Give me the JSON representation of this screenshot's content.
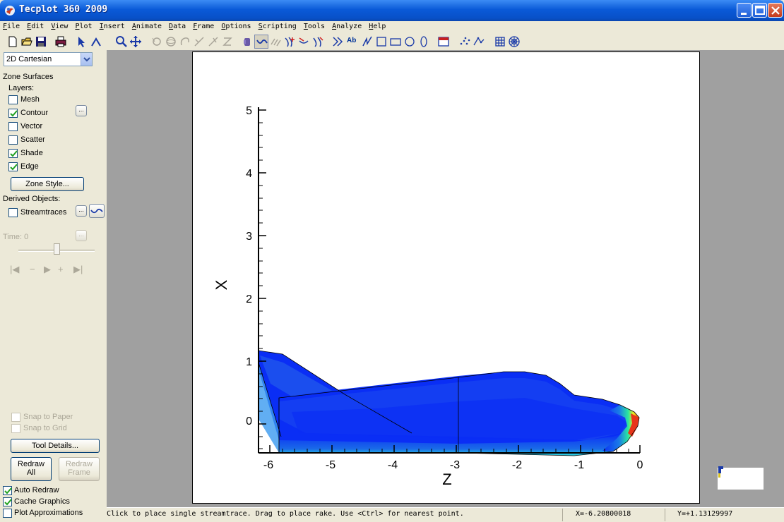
{
  "window": {
    "title": "Tecplot 360 2009"
  },
  "menu": [
    "File",
    "Edit",
    "View",
    "Plot",
    "Insert",
    "Animate",
    "Data",
    "Frame",
    "Options",
    "Scripting",
    "Tools",
    "Analyze",
    "Help"
  ],
  "toolbar": {
    "text_tool_label": "Ab"
  },
  "sidebar": {
    "plot_type": "2D Cartesian",
    "zone_surfaces_label": "Zone Surfaces",
    "layers_label": "Layers:",
    "layers": [
      {
        "label": "Mesh",
        "checked": false
      },
      {
        "label": "Contour",
        "checked": true
      },
      {
        "label": "Vector",
        "checked": false
      },
      {
        "label": "Scatter",
        "checked": false
      },
      {
        "label": "Shade",
        "checked": true
      },
      {
        "label": "Edge",
        "checked": true
      }
    ],
    "zone_style_button": "Zone Style...",
    "derived_objects_label": "Derived Objects:",
    "streamtraces_label": "Streamtraces",
    "dots_label": "...",
    "time_label": "Time: 0",
    "snap_to_paper": "Snap to Paper",
    "snap_to_grid": "Snap to Grid",
    "tool_details_button": "Tool Details...",
    "redraw_all_line1": "Redraw",
    "redraw_all_line2": "All",
    "redraw_frame_line1": "Redraw",
    "redraw_frame_line2": "Frame",
    "auto_redraw": {
      "label": "Auto Redraw",
      "checked": true
    },
    "cache_graphics": {
      "label": "Cache Graphics",
      "checked": true
    },
    "plot_approximations": {
      "label": "Plot Approximations",
      "checked": false
    }
  },
  "plot": {
    "xlabel": "Z",
    "ylabel": "X",
    "xticks": [
      "-6",
      "-5",
      "-4",
      "-3",
      "-2",
      "-1",
      "0"
    ],
    "yticks": [
      "0",
      "1",
      "2",
      "3",
      "4",
      "5"
    ],
    "colors": {
      "body": "#0a2ef5",
      "hot": "#e8351a",
      "warm": "#f5e81a",
      "mid": "#2ae85a"
    }
  },
  "status": {
    "message": "Click to place single streamtrace. Drag to place rake. Use <Ctrl> for nearest point.",
    "x_readout": "X=-6.20800018",
    "y_readout": "Y=+1.13129997"
  }
}
